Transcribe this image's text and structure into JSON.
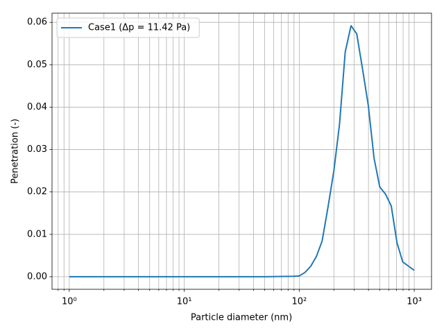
{
  "chart_data": {
    "type": "line",
    "xlabel": "Particle diameter (nm)",
    "ylabel": "Penetration (-)",
    "xscale": "log",
    "grid": true,
    "legend": "upper left",
    "xlim": [
      0.708,
      1413
    ],
    "ylim": [
      -0.00296,
      0.06216
    ],
    "xticks": [
      {
        "value": 1,
        "label": "10⁰"
      },
      {
        "value": 10,
        "label": "10¹"
      },
      {
        "value": 100,
        "label": "10²"
      },
      {
        "value": 1000,
        "label": "10³"
      }
    ],
    "xminorticks": [
      0.8,
      0.9,
      2,
      3,
      4,
      5,
      6,
      7,
      8,
      9,
      20,
      30,
      40,
      50,
      60,
      70,
      80,
      90,
      200,
      300,
      400,
      500,
      600,
      700,
      800,
      900
    ],
    "yticks": [
      {
        "value": 0,
        "label": "0.00"
      },
      0.01,
      0.02,
      0.03,
      0.04,
      0.05,
      0.06
    ],
    "x": [
      1,
      10,
      50,
      89,
      100,
      112,
      126,
      141,
      158,
      178,
      200,
      224,
      251,
      282,
      316,
      355,
      398,
      447,
      501,
      562,
      631,
      708,
      794,
      891,
      1000
    ],
    "series": [
      {
        "name": "Case1 (Δp = 11.42 Pa)",
        "color": "#1f77b4",
        "values": [
          0,
          0,
          0,
          0.0001,
          0.0002,
          0.001,
          0.0025,
          0.0048,
          0.0084,
          0.0165,
          0.025,
          0.036,
          0.053,
          0.0592,
          0.0573,
          0.049,
          0.0405,
          0.028,
          0.0212,
          0.0195,
          0.0167,
          0.008,
          0.0035,
          0.0025,
          0.0015
        ]
      }
    ]
  }
}
